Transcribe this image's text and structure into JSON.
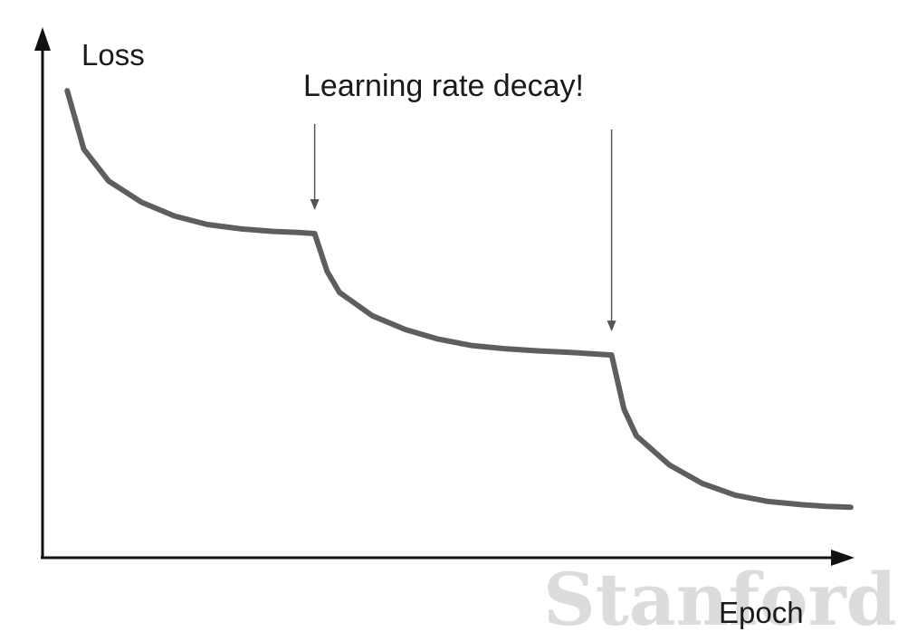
{
  "watermark": "Stanford",
  "chart_data": {
    "type": "line",
    "xlabel": "Epoch",
    "ylabel": "Loss",
    "annotation": "Learning rate decay!",
    "decay_epochs": [
      0.33,
      0.69
    ],
    "xlim": [
      0,
      1
    ],
    "ylim": [
      0,
      1
    ],
    "grid": false,
    "colors": {
      "line": "#5e5e5e",
      "axis": "#111111",
      "arrow": "#555555"
    },
    "series": [
      {
        "x": [
          0.03,
          0.05,
          0.08,
          0.12,
          0.16,
          0.2,
          0.24,
          0.28,
          0.31,
          0.33,
          0.345,
          0.36,
          0.4,
          0.44,
          0.48,
          0.52,
          0.56,
          0.6,
          0.64,
          0.67,
          0.69,
          0.705,
          0.72,
          0.76,
          0.8,
          0.84,
          0.88,
          0.92,
          0.95,
          0.98
        ],
        "values": [
          0.88,
          0.77,
          0.71,
          0.67,
          0.644,
          0.628,
          0.62,
          0.615,
          0.613,
          0.611,
          0.54,
          0.5,
          0.456,
          0.43,
          0.412,
          0.4,
          0.394,
          0.39,
          0.387,
          0.384,
          0.382,
          0.28,
          0.23,
          0.175,
          0.14,
          0.118,
          0.106,
          0.1,
          0.097,
          0.095
        ]
      }
    ]
  }
}
